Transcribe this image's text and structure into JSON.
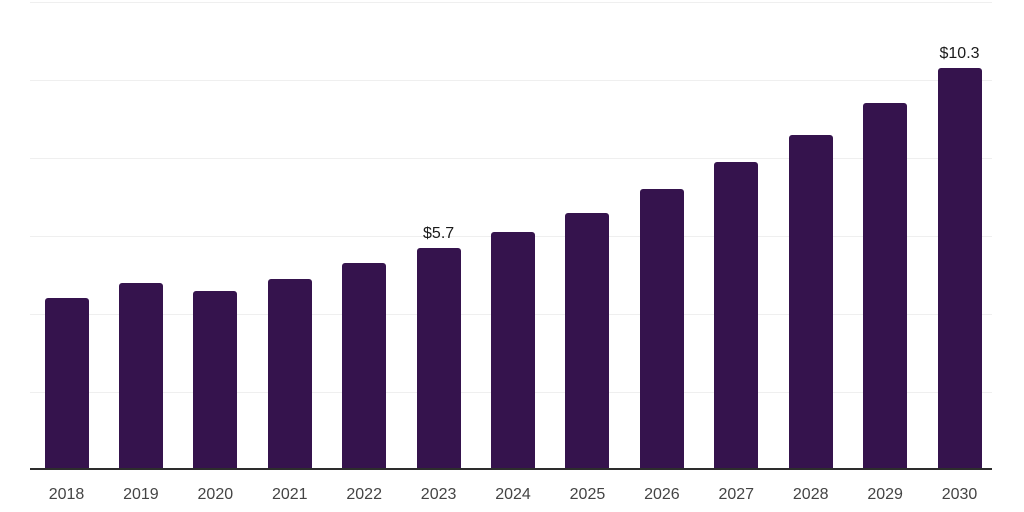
{
  "chart_data": {
    "type": "bar",
    "title": "",
    "xlabel": "",
    "ylabel": "",
    "categories": [
      "2018",
      "2019",
      "2020",
      "2021",
      "2022",
      "2023",
      "2024",
      "2025",
      "2026",
      "2027",
      "2028",
      "2029",
      "2030"
    ],
    "values": [
      4.4,
      4.8,
      4.6,
      4.9,
      5.3,
      5.7,
      6.1,
      6.6,
      7.2,
      7.9,
      8.6,
      9.4,
      10.3
    ],
    "bar_labels": [
      "",
      "",
      "",
      "",
      "",
      "$5.7",
      "",
      "",
      "",
      "",
      "",
      "",
      "$10.3"
    ],
    "ylim": [
      0,
      12
    ],
    "gridline_step": 2,
    "grid": "horizontal-only",
    "y_tick_labels": "none",
    "legend": "none",
    "colors": {
      "bar": "#35134d",
      "axis_line": "#2d2d2d",
      "gridline": "#efefef",
      "x_tick_label": "#444444",
      "data_label": "#1a1a1a",
      "background": "#ffffff"
    }
  }
}
